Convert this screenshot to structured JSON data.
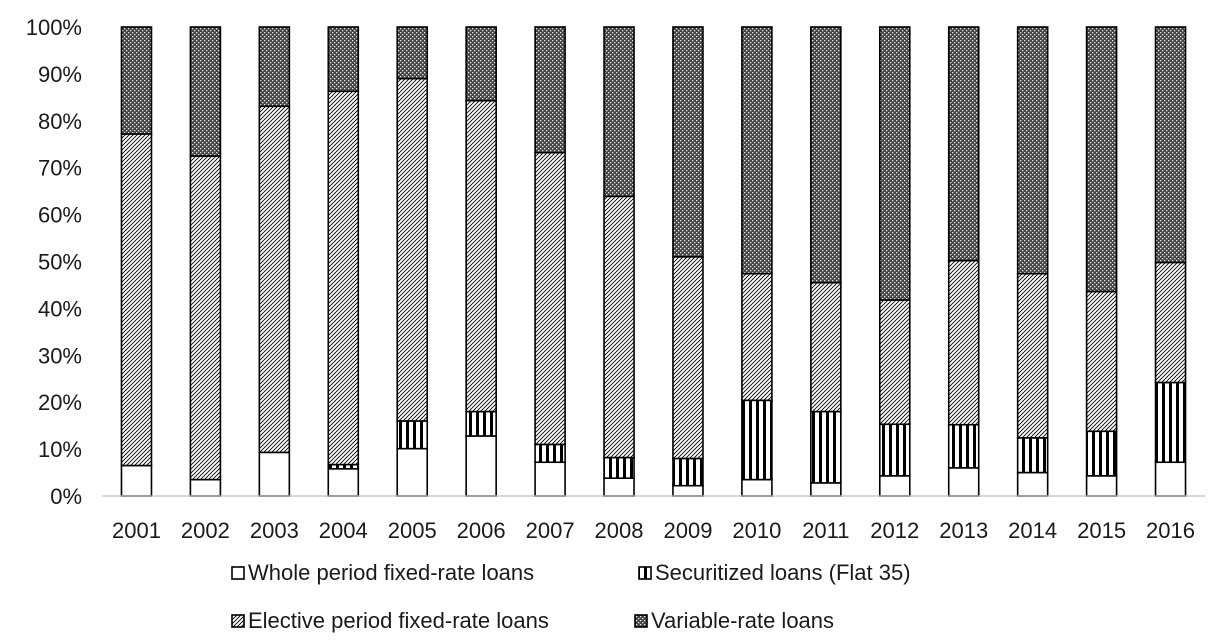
{
  "chart_data": {
    "type": "bar",
    "stacked": true,
    "categories": [
      "2001",
      "2002",
      "2003",
      "2004",
      "2005",
      "2006",
      "2007",
      "2008",
      "2009",
      "2010",
      "2011",
      "2012",
      "2013",
      "2014",
      "2015",
      "2016"
    ],
    "ylim": [
      0,
      100
    ],
    "ytick_labels": [
      "0%",
      "10%",
      "20%",
      "30%",
      "40%",
      "50%",
      "60%",
      "70%",
      "80%",
      "90%",
      "100%"
    ],
    "grid": false,
    "legend_position": "bottom",
    "series": [
      {
        "name": "Whole period fixed-rate loans",
        "pattern": "blank",
        "values": [
          6.5,
          3.5,
          9.3,
          5.8,
          10.1,
          12.8,
          7.2,
          3.8,
          2.2,
          3.5,
          2.8,
          4.3,
          6.0,
          5.0,
          4.3,
          7.2
        ]
      },
      {
        "name": "Securitized loans (Flat 35)",
        "pattern": "vertical-stripes",
        "values": [
          0,
          0,
          0,
          0.9,
          5.9,
          5.2,
          3.8,
          4.4,
          5.8,
          16.9,
          15.2,
          11.0,
          9.2,
          7.4,
          9.5,
          17.0
        ]
      },
      {
        "name": "Elective period fixed-rate loans",
        "pattern": "diagonal-hatch",
        "values": [
          70.7,
          69.0,
          73.8,
          79.6,
          73.0,
          66.3,
          62.2,
          55.7,
          43.0,
          27.0,
          27.5,
          26.5,
          35.0,
          35.0,
          29.8,
          25.6
        ]
      },
      {
        "name": "Variable-rate loans",
        "pattern": "dense-crosshatch",
        "values": [
          22.8,
          27.5,
          16.9,
          13.7,
          11.0,
          15.7,
          26.8,
          36.1,
          49.0,
          52.6,
          54.5,
          58.2,
          49.8,
          52.6,
          56.4,
          50.2
        ]
      }
    ]
  }
}
